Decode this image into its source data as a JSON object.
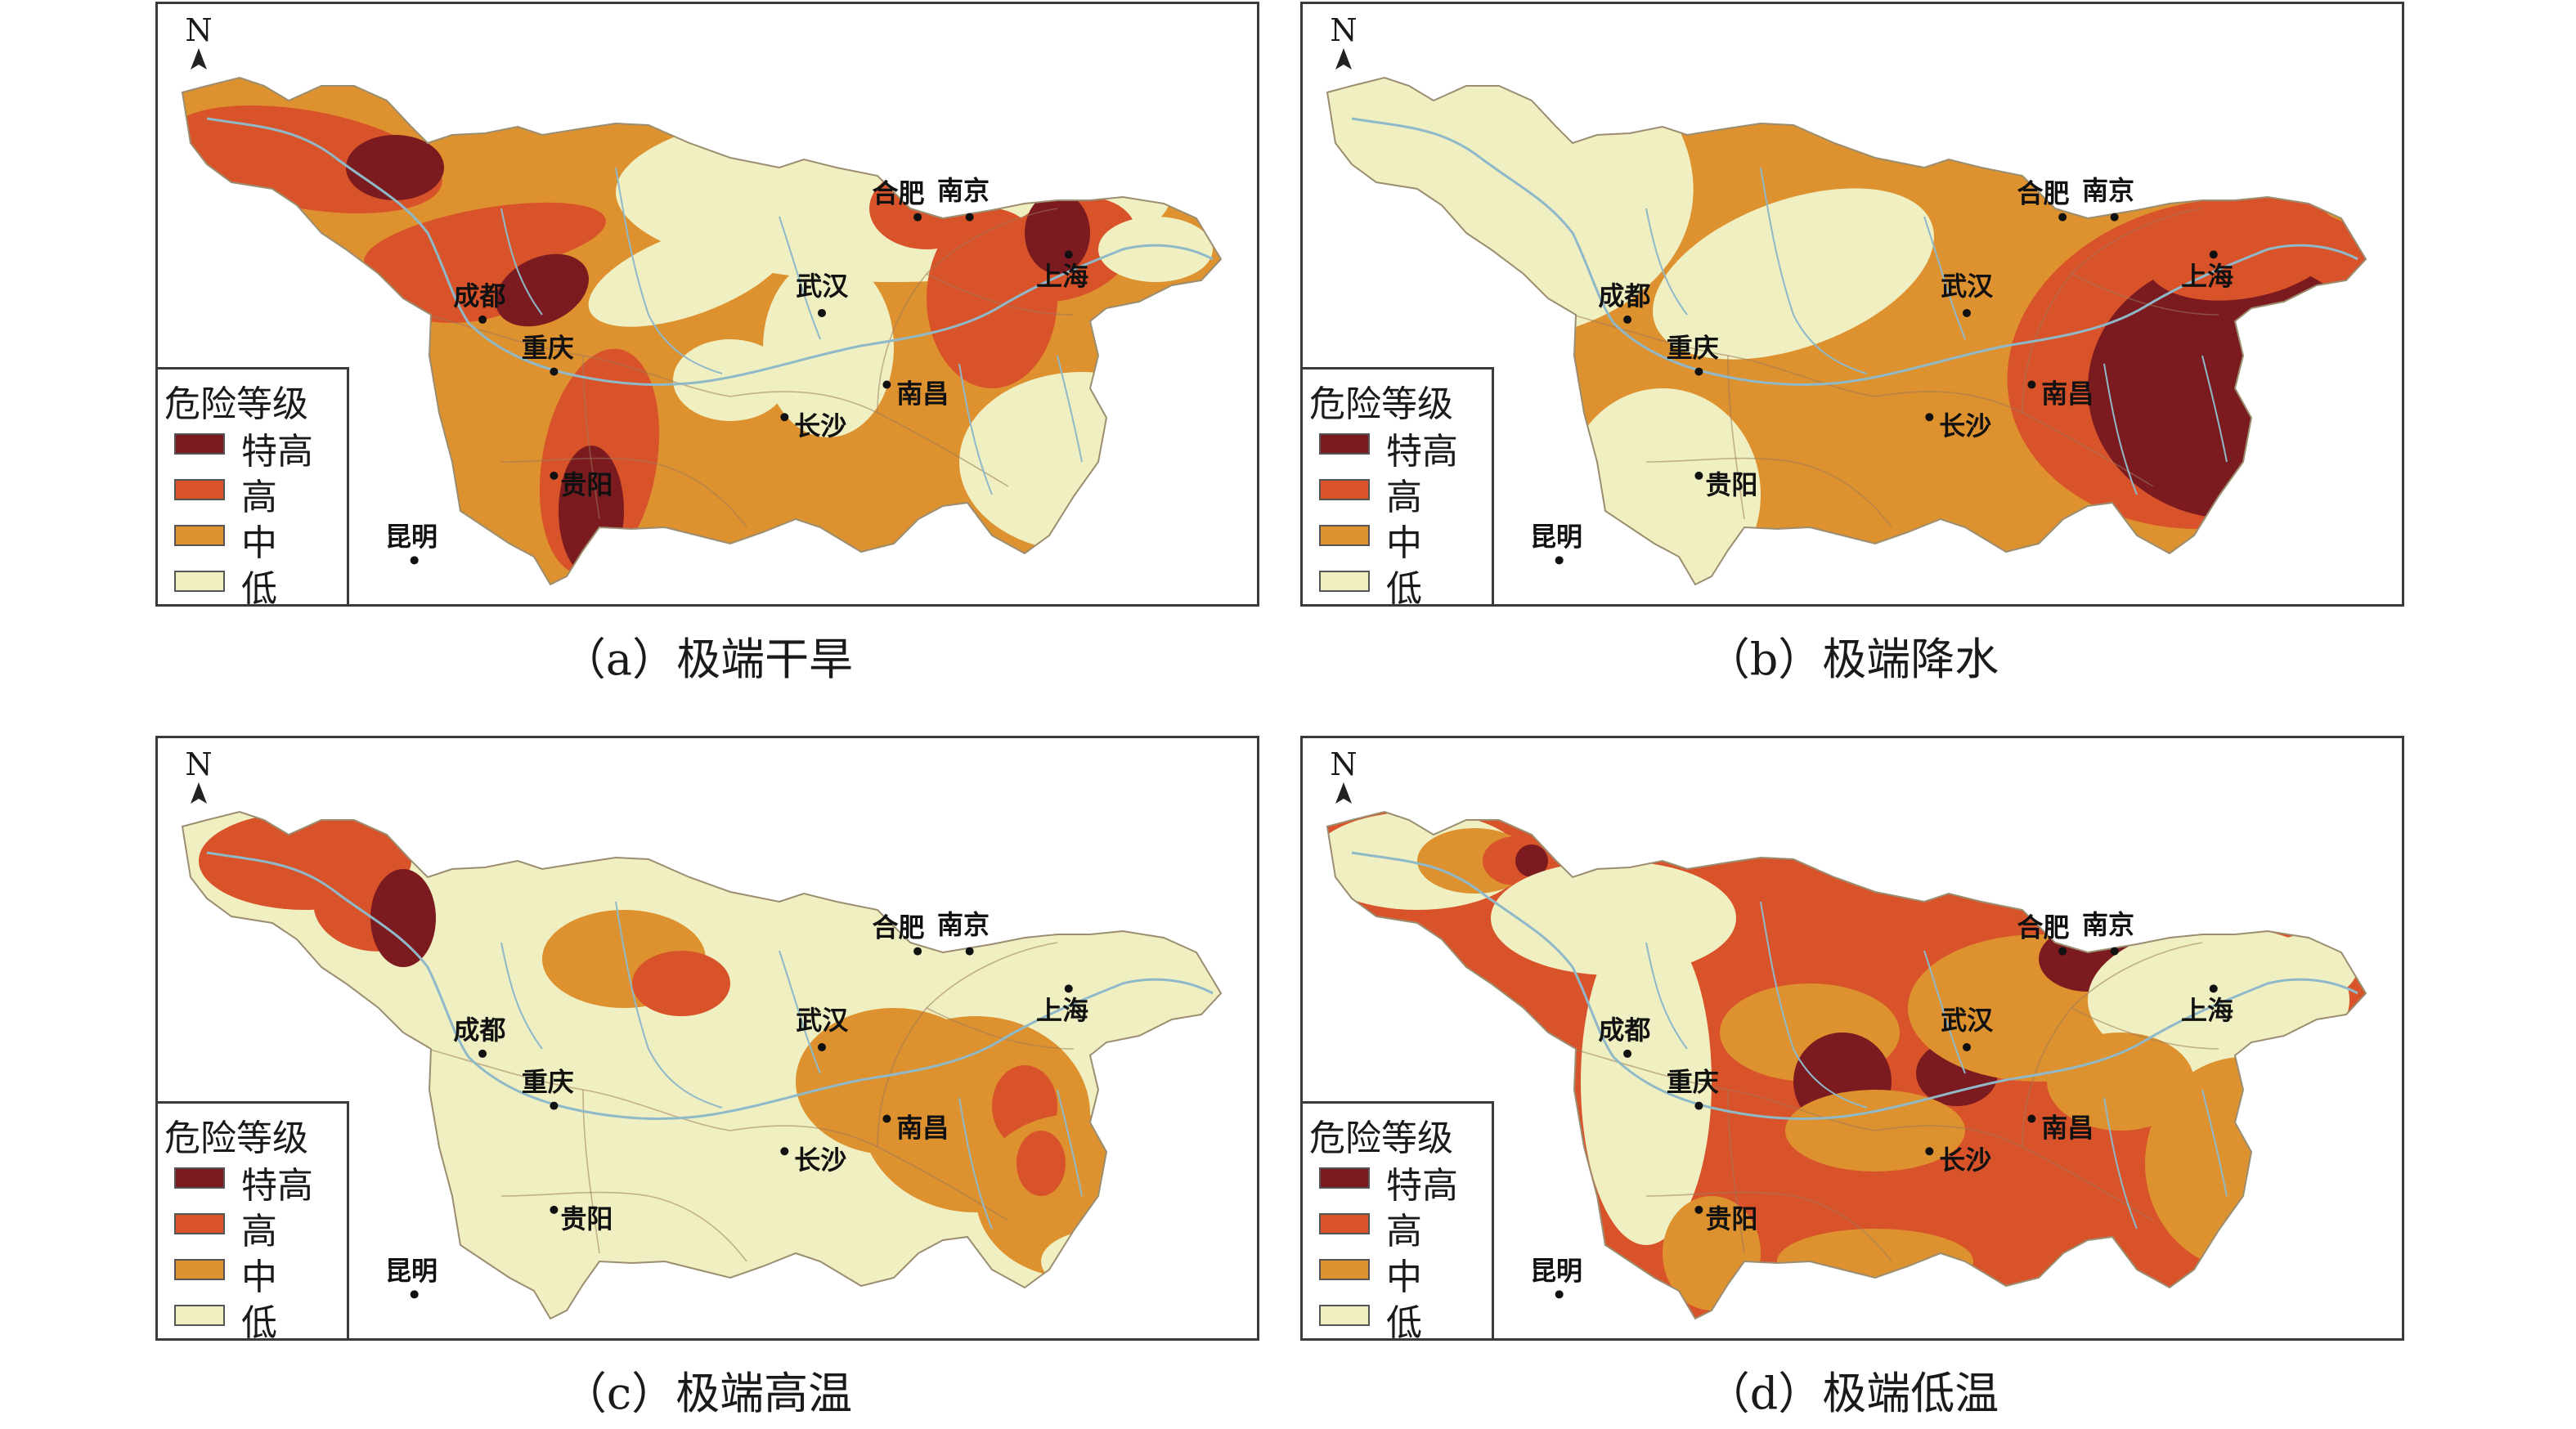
{
  "legend": {
    "title": "危险等级",
    "levels": [
      {
        "key": "extreme",
        "label": "特高",
        "color": "#7b1a1f"
      },
      {
        "key": "high",
        "label": "高",
        "color": "#d9532a"
      },
      {
        "key": "medium",
        "label": "中",
        "color": "#dd912f"
      },
      {
        "key": "low",
        "label": "低",
        "color": "#f0efc2"
      }
    ]
  },
  "north_label": "N",
  "cities": [
    {
      "key": "chengdu",
      "name": "成都"
    },
    {
      "key": "chongqing",
      "name": "重庆"
    },
    {
      "key": "guiyang",
      "name": "贵阳"
    },
    {
      "key": "kunming",
      "name": "昆明"
    },
    {
      "key": "changsha",
      "name": "长沙"
    },
    {
      "key": "wuhan",
      "name": "武汉"
    },
    {
      "key": "nanchang",
      "name": "南昌"
    },
    {
      "key": "hefei",
      "name": "合肥"
    },
    {
      "key": "nanjing",
      "name": "南京"
    },
    {
      "key": "shanghai",
      "name": "上海"
    }
  ],
  "panels": [
    {
      "id": "a",
      "caption": "（a）极端干旱",
      "base": "medium"
    },
    {
      "id": "b",
      "caption": "（b）极端降水",
      "base": "medium"
    },
    {
      "id": "c",
      "caption": "（c）极端高温",
      "base": "low"
    },
    {
      "id": "d",
      "caption": "（d）极端低温",
      "base": "high"
    }
  ],
  "colors": {
    "river": "#8fb9c9",
    "border": "#9a7a5a",
    "frame": "#3a3a3a"
  }
}
